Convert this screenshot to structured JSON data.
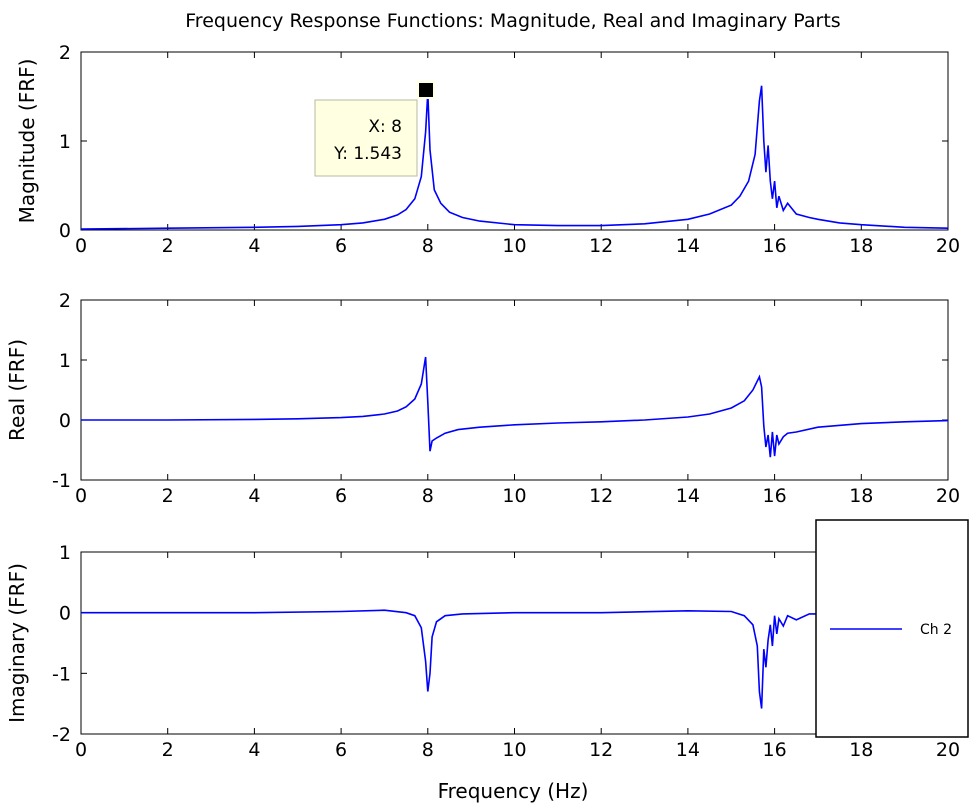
{
  "chart_data": [
    {
      "type": "line",
      "title": "Frequency Response Functions: Magnitude, Real and Imaginary Parts",
      "xlabel": "",
      "ylabel": "Magnitude (FRF)",
      "xlim": [
        0,
        20
      ],
      "ylim": [
        0,
        2
      ],
      "xticks": [
        0,
        2,
        4,
        6,
        8,
        10,
        12,
        14,
        16,
        18,
        20
      ],
      "yticks": [
        0,
        1,
        2
      ],
      "series": [
        {
          "color": "#0000ff",
          "x": [
            0,
            2,
            4,
            5,
            6,
            6.5,
            7,
            7.3,
            7.5,
            7.7,
            7.85,
            7.95,
            8.0,
            8.05,
            8.15,
            8.3,
            8.5,
            8.8,
            9.2,
            10,
            11,
            12,
            13,
            14,
            14.5,
            15.0,
            15.2,
            15.4,
            15.55,
            15.65,
            15.7,
            15.75,
            15.8,
            15.85,
            15.9,
            15.95,
            16.0,
            16.05,
            16.1,
            16.2,
            16.3,
            16.5,
            16.8,
            17,
            17.5,
            18,
            19,
            20
          ],
          "y": [
            0.01,
            0.02,
            0.03,
            0.04,
            0.06,
            0.08,
            0.12,
            0.17,
            0.23,
            0.35,
            0.6,
            1.1,
            1.543,
            0.9,
            0.45,
            0.3,
            0.2,
            0.14,
            0.1,
            0.06,
            0.05,
            0.05,
            0.07,
            0.12,
            0.18,
            0.28,
            0.38,
            0.55,
            0.85,
            1.45,
            1.62,
            1.0,
            0.65,
            0.95,
            0.55,
            0.35,
            0.55,
            0.25,
            0.38,
            0.22,
            0.3,
            0.18,
            0.14,
            0.12,
            0.08,
            0.06,
            0.03,
            0.02
          ]
        }
      ],
      "datatip": {
        "x_label": "X: 8",
        "y_label": "Y: 1.543",
        "x": 8,
        "y": 1.543
      }
    },
    {
      "type": "line",
      "title": "",
      "xlabel": "",
      "ylabel": "Real (FRF)",
      "xlim": [
        0,
        20
      ],
      "ylim": [
        -1,
        2
      ],
      "xticks": [
        0,
        2,
        4,
        6,
        8,
        10,
        12,
        14,
        16,
        18,
        20
      ],
      "yticks": [
        -1,
        0,
        1,
        2
      ],
      "series": [
        {
          "color": "#0000ff",
          "x": [
            0,
            2,
            4,
            5,
            6,
            6.5,
            7,
            7.3,
            7.5,
            7.7,
            7.85,
            7.95,
            8.0,
            8.05,
            8.1,
            8.2,
            8.4,
            8.7,
            9.2,
            10,
            11,
            12,
            13,
            14,
            14.5,
            15.0,
            15.3,
            15.5,
            15.65,
            15.7,
            15.75,
            15.8,
            15.85,
            15.9,
            15.95,
            16.0,
            16.05,
            16.1,
            16.2,
            16.3,
            16.5,
            17,
            18,
            19,
            20
          ],
          "y": [
            0.0,
            0.0,
            0.01,
            0.02,
            0.04,
            0.06,
            0.1,
            0.15,
            0.22,
            0.35,
            0.6,
            1.05,
            0.3,
            -0.52,
            -0.35,
            -0.3,
            -0.22,
            -0.16,
            -0.12,
            -0.08,
            -0.05,
            -0.03,
            0.0,
            0.05,
            0.1,
            0.2,
            0.32,
            0.5,
            0.72,
            0.55,
            -0.1,
            -0.45,
            -0.25,
            -0.62,
            -0.2,
            -0.6,
            -0.25,
            -0.4,
            -0.28,
            -0.22,
            -0.2,
            -0.12,
            -0.06,
            -0.03,
            -0.01
          ]
        }
      ]
    },
    {
      "type": "line",
      "title": "",
      "xlabel": "Frequency (Hz)",
      "ylabel": "Imaginary (FRF)",
      "xlim": [
        0,
        20
      ],
      "ylim": [
        -2,
        1
      ],
      "xticks": [
        0,
        2,
        4,
        6,
        8,
        10,
        12,
        14,
        16,
        18,
        20
      ],
      "yticks": [
        -2,
        -1,
        0,
        1
      ],
      "series": [
        {
          "name": "Ch 2",
          "color": "#0000ff",
          "x": [
            0,
            2,
            4,
            6,
            7,
            7.5,
            7.7,
            7.85,
            7.95,
            8.0,
            8.05,
            8.1,
            8.2,
            8.4,
            8.8,
            10,
            12,
            14,
            15,
            15.3,
            15.5,
            15.6,
            15.65,
            15.7,
            15.75,
            15.8,
            15.85,
            15.9,
            15.95,
            16.0,
            16.05,
            16.1,
            16.2,
            16.3,
            16.5,
            16.8,
            17,
            18,
            19,
            20
          ],
          "y": [
            0.0,
            0.0,
            0.0,
            0.02,
            0.04,
            0.0,
            -0.05,
            -0.25,
            -0.8,
            -1.3,
            -1.0,
            -0.4,
            -0.15,
            -0.05,
            -0.02,
            0.0,
            0.0,
            0.03,
            0.02,
            -0.05,
            -0.2,
            -0.55,
            -1.3,
            -1.58,
            -0.6,
            -0.9,
            -0.45,
            -0.2,
            -0.55,
            -0.05,
            -0.35,
            -0.1,
            -0.22,
            -0.05,
            -0.12,
            -0.02,
            -0.02,
            0.0,
            0.0,
            0.0
          ]
        }
      ]
    }
  ]
}
